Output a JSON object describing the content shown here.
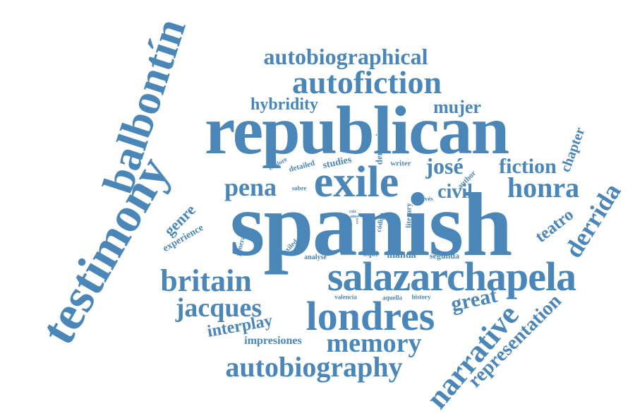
{
  "accent_color": "#4a86b8",
  "background_color": "#ffffff",
  "words": {
    "spanish": "spanish",
    "republican": "republican",
    "testimony": "testimony",
    "balbontin": "balbontín",
    "exile": "exile",
    "salazarchapela": "salazarchapela",
    "londres": "londres",
    "autofiction": "autofiction",
    "autobiographical": "autobiographical",
    "autobiography": "autobiography",
    "britain": "britain",
    "jacques": "jacques",
    "memory": "memory",
    "narrative": "narrative",
    "representation": "representation",
    "derrida": "derrida",
    "honra": "honra",
    "pena": "pena",
    "jose": "josé",
    "fiction": "fiction",
    "civil": "civil",
    "mujer": "mujer",
    "hybridity": "hybridity",
    "great": "great",
    "teatro": "teatro",
    "interplay": "interplay",
    "impresiones": "impresiones",
    "genre": "genre",
    "experience": "experience",
    "chapter": "chapter",
    "denuncia": "denuncia",
    "studies": "studies",
    "detailed": "detailed",
    "explore": "explore",
    "writer": "writer",
    "author": "author",
    "sobre": "sobre",
    "traves": "través",
    "codigo": "código",
    "literary": "literary",
    "raiz": "raíz",
    "aims": "aims",
    "rota": "rota",
    "general": "general",
    "exiled": "exiled",
    "analyse": "analyse",
    "aqui": "aquí",
    "manda": "manda",
    "segunda": "segunda",
    "valencia": "valencia",
    "aquella": "aquella",
    "history": "history"
  }
}
